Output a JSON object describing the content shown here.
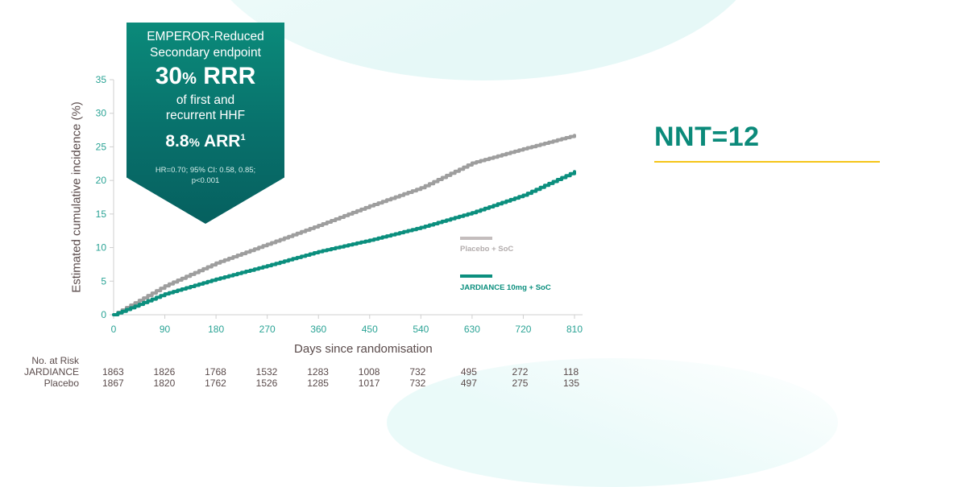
{
  "callout": {
    "line1": "EMPEROR-Reduced",
    "line2": "Secondary endpoint",
    "rrr_value": "30",
    "rrr_pct": "%",
    "rrr_label": " RRR",
    "desc1": "of first and",
    "desc2": "recurrent HHF",
    "arr_value": "8.8",
    "arr_pct": "%",
    "arr_label": " ARR",
    "arr_ref": "1",
    "stats1": "HR=0.70; 95% CI: 0.58, 0.85;",
    "stats2": "p<0.001"
  },
  "nnt": {
    "label": "NNT=12",
    "color": "#0b8a7a",
    "underline_color": "#f5c518"
  },
  "risk_table": {
    "header": "No. at Risk",
    "rows": [
      {
        "label": "JARDIANCE",
        "values": [
          "1863",
          "1826",
          "1768",
          "1532",
          "1283",
          "1008",
          "732",
          "495",
          "272",
          "118"
        ]
      },
      {
        "label": "Placebo",
        "values": [
          "1867",
          "1820",
          "1762",
          "1526",
          "1285",
          "1017",
          "732",
          "497",
          "275",
          "135"
        ]
      }
    ]
  },
  "colors": {
    "jardiance": "#0b8f7e",
    "placebo": "#9e9e9e",
    "axis_tick_text": "#2aa395",
    "text": "#5a4b4b"
  },
  "chart_data": {
    "type": "line",
    "title": "EMPEROR-Reduced: first and recurrent HHF",
    "xlabel": "Days since randomisation",
    "ylabel": "Estimated cumulative incidence (%)",
    "x": [
      0,
      90,
      180,
      270,
      360,
      450,
      540,
      630,
      720,
      810
    ],
    "xticks": [
      "0",
      "90",
      "180",
      "270",
      "360",
      "450",
      "540",
      "630",
      "720",
      "810"
    ],
    "yticks": [
      "0",
      "5",
      "10",
      "15",
      "20",
      "25",
      "30",
      "35"
    ],
    "xlim": [
      0,
      810
    ],
    "ylim": [
      0,
      35
    ],
    "grid": false,
    "legend_position": "lower right",
    "series": [
      {
        "name": "Placebo + SoC",
        "color": "#9e9e9e",
        "values": [
          0,
          4.3,
          7.7,
          10.5,
          13.3,
          16.2,
          18.9,
          22.6,
          24.7,
          26.7
        ]
      },
      {
        "name": "JARDIANCE 10mg + SoC",
        "color": "#0b8f7e",
        "values": [
          0,
          3.1,
          5.3,
          7.3,
          9.4,
          11.1,
          13.0,
          15.2,
          17.8,
          21.3
        ]
      }
    ]
  }
}
